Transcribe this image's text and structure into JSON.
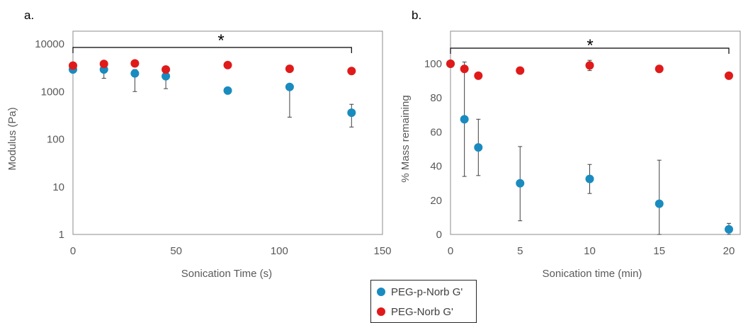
{
  "chart_data": [
    {
      "panel_label": "a.",
      "type": "scatter",
      "xlabel": "Sonication Time (s)",
      "ylabel": "Modulus (Pa)",
      "xlim": [
        0,
        150
      ],
      "ylim": [
        1,
        10000
      ],
      "yscale": "log",
      "xticks": [
        0,
        50,
        100,
        150
      ],
      "yticks": [
        1,
        10,
        100,
        1000,
        10000
      ],
      "significance": {
        "label": "*",
        "x_start": 0,
        "x_end": 135
      },
      "series": [
        {
          "name": "PEG-p-Norb G'",
          "color": "#1a8bbf",
          "x": [
            0,
            15,
            30,
            45,
            75,
            105,
            135
          ],
          "y": [
            2900,
            2900,
            2400,
            2100,
            1050,
            1250,
            360
          ],
          "err_low": [
            2900,
            1900,
            1000,
            1150,
            1000,
            290,
            180
          ],
          "err_high": [
            2900,
            3400,
            2900,
            2300,
            1100,
            1300,
            540
          ]
        },
        {
          "name": "PEG-Norb G'",
          "color": "#e01a1a",
          "x": [
            0,
            15,
            30,
            45,
            75,
            105,
            135
          ],
          "y": [
            3500,
            3800,
            3900,
            2900,
            3600,
            3000,
            2700
          ],
          "err_low": [
            3500,
            3800,
            3900,
            2900,
            3600,
            3000,
            2700
          ],
          "err_high": [
            3500,
            3800,
            3900,
            2900,
            3600,
            3000,
            2700
          ]
        }
      ]
    },
    {
      "panel_label": "b.",
      "type": "scatter",
      "xlabel": "Sonication time (min)",
      "ylabel": "% Mass remaining",
      "xlim": [
        0,
        20
      ],
      "ylim": [
        0,
        100
      ],
      "xticks": [
        0,
        5,
        10,
        15,
        20
      ],
      "yticks": [
        0,
        20,
        40,
        60,
        80,
        100
      ],
      "significance": {
        "label": "*",
        "x_start": 0,
        "x_end": 20
      },
      "series": [
        {
          "name": "PEG-p-Norb G'",
          "color": "#1a8bbf",
          "x": [
            0,
            1,
            2,
            5,
            10,
            15,
            20
          ],
          "y": [
            100,
            67.5,
            51,
            30,
            32.5,
            18,
            3
          ],
          "err_low": [
            100,
            34,
            34.5,
            8,
            24,
            0,
            0
          ],
          "err_high": [
            100,
            101,
            67.5,
            51.5,
            41,
            43.5,
            6.5
          ]
        },
        {
          "name": "PEG-Norb G'",
          "color": "#e01a1a",
          "x": [
            0,
            1,
            2,
            5,
            10,
            15,
            20
          ],
          "y": [
            100,
            97,
            93,
            96,
            99,
            97,
            93
          ],
          "err_low": [
            100,
            95,
            91.5,
            96,
            96,
            95,
            93
          ],
          "err_high": [
            100,
            99,
            94.5,
            96,
            102,
            99,
            93
          ]
        }
      ]
    }
  ],
  "legend": {
    "items": [
      {
        "label": "PEG-p-Norb G'",
        "color": "#1a8bbf"
      },
      {
        "label": "PEG-Norb G'",
        "color": "#e01a1a"
      }
    ]
  }
}
